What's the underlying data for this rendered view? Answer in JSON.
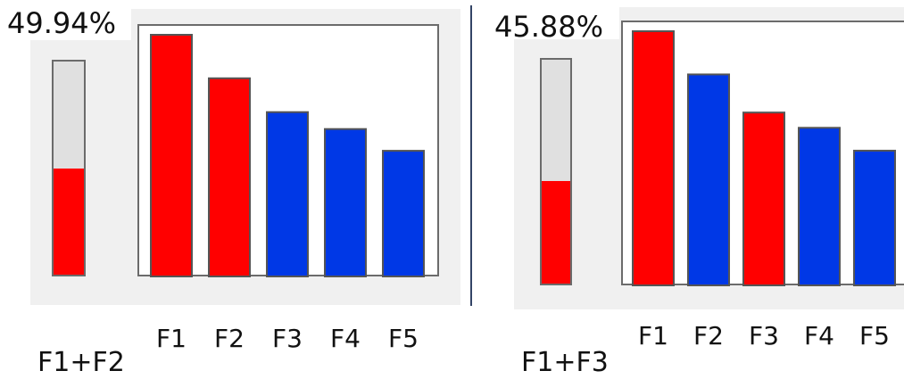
{
  "colors": {
    "selected": "#ff0000",
    "unselected": "#0038e6",
    "bar_stroke": "#555555"
  },
  "chart_data": [
    {
      "type": "bar",
      "combination": "F1+F2",
      "percentage_label": "49.94%",
      "percentage": 49.94,
      "categories": [
        "F1",
        "F2",
        "F3",
        "F4",
        "F5"
      ],
      "values": [
        100,
        82,
        68,
        61,
        52
      ],
      "highlighted": [
        true,
        true,
        false,
        false,
        false
      ],
      "ylim": [
        0,
        100
      ]
    },
    {
      "type": "bar",
      "combination": "F1+F3",
      "percentage_label": "45.88%",
      "percentage": 45.88,
      "categories": [
        "F1",
        "F2",
        "F3",
        "F4",
        "F5"
      ],
      "values": [
        100,
        83,
        68,
        62,
        53
      ],
      "highlighted": [
        true,
        false,
        true,
        false,
        false
      ],
      "ylim": [
        0,
        100
      ]
    }
  ]
}
